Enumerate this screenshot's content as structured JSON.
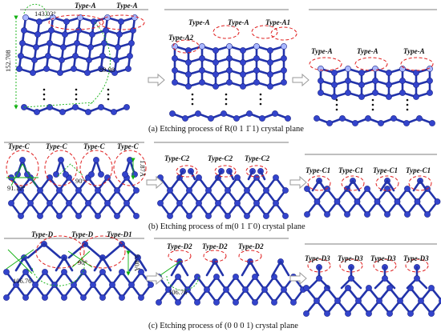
{
  "colors": {
    "atom": "#3344cc",
    "atom_highlight": "#aab8ff",
    "bond": "#2233aa",
    "highlight_ellipse": "#e02020",
    "annotation": "#10b010",
    "arrow": "#999999"
  },
  "panels": [
    {
      "id": "a",
      "caption": "(a) Etching process of R(0 1 1̄ 1) crystal plane",
      "angles": [
        "143.03°",
        "89.98"
      ],
      "dimension": "152.708",
      "stage1_labels": [
        "Type-A",
        "Type-A"
      ],
      "stage2_labels": [
        "Type-A2",
        "Type-A",
        "Type-A",
        "Type-A1"
      ],
      "stage3_labels": [
        "Type-A",
        "Type-A",
        "Type-A"
      ]
    },
    {
      "id": "b",
      "caption": "(b) Etching process of m(0 1 1̄ 0) crystal plane",
      "angles": [
        "91.12°",
        "90°"
      ],
      "dimension": "1.87Å",
      "stage1_labels": [
        "Type-C",
        "Type-C",
        "Type-C",
        "Type-C"
      ],
      "stage2_labels": [
        "Type-C2",
        "Type-C2",
        "Type-C2"
      ],
      "stage3_labels": [
        "Type-C1",
        "Type-C1",
        "Type-C1",
        "Type-C1"
      ]
    },
    {
      "id": "c",
      "caption": "(c) Etching process of (0 0 0 1) crystal plane",
      "angles": [
        "106.76",
        "90°"
      ],
      "dimension": "5.40Å",
      "stage1_labels": [
        "Type-D",
        "Type-D",
        "Type-D1"
      ],
      "stage2_labels": [
        "Type-D2",
        "Type-D2",
        "Type-D2"
      ],
      "stage2_angle": "106.76",
      "stage3_labels": [
        "Type-D3",
        "Type-D3",
        "Type-D3",
        "Type-D3"
      ]
    }
  ]
}
